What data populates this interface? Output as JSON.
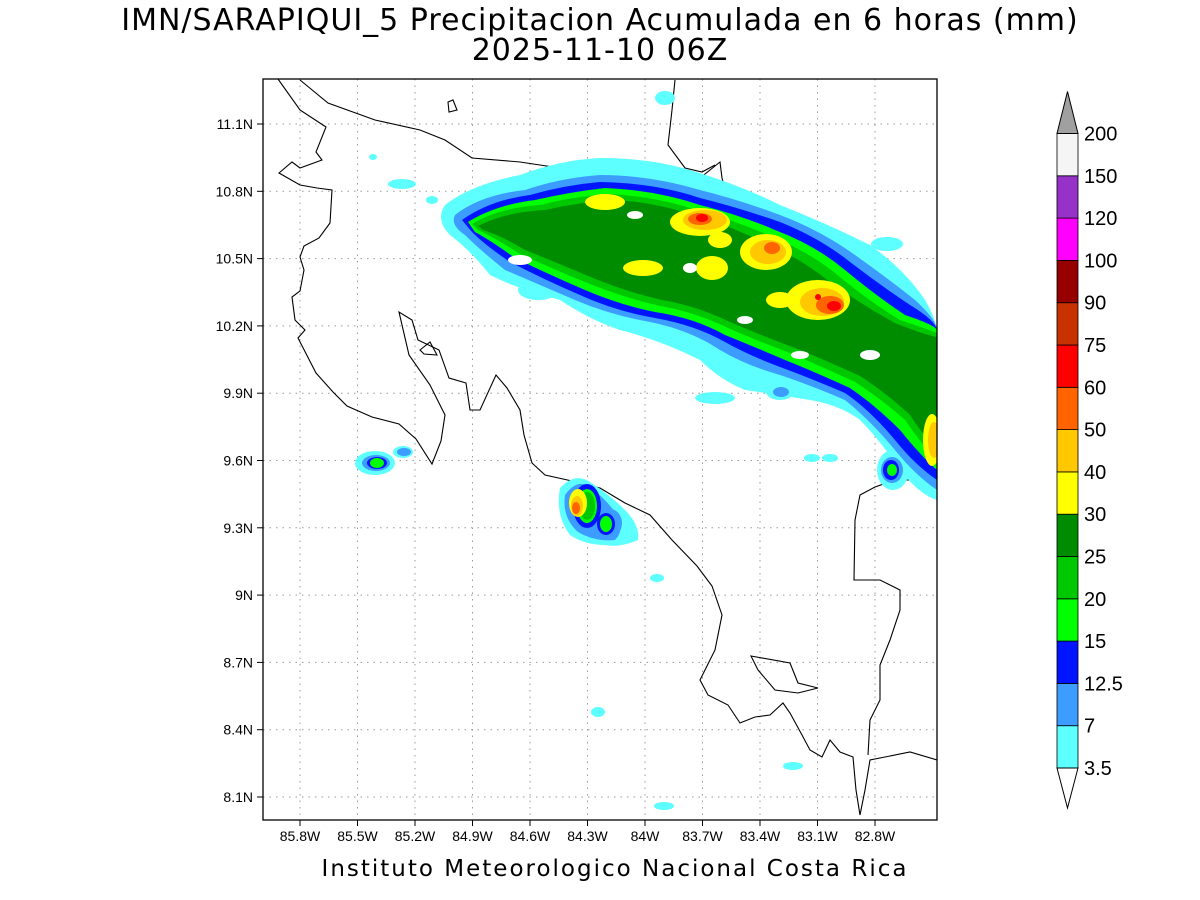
{
  "title_line1": "IMN/SARAPIQUI_5 Precipitacion Acumulada en 6 horas (mm)",
  "title_line2": "2025-11-10 06Z",
  "footer": "Instituto Meteorologico Nacional Costa Rica",
  "chart_data": {
    "type": "heatmap",
    "lon_ticks": [
      "85.8W",
      "85.5W",
      "85.2W",
      "84.9W",
      "84.6W",
      "84.3W",
      "84W",
      "83.7W",
      "83.4W",
      "83.1W",
      "82.8W"
    ],
    "lat_ticks": [
      "11.1N",
      "10.8N",
      "10.5N",
      "10.2N",
      "9.9N",
      "9.6N",
      "9.3N",
      "9N",
      "8.7N",
      "8.4N",
      "8.1N"
    ],
    "grid": true,
    "legend_placement": "right",
    "colorbar": {
      "labels": [
        "3.5",
        "7",
        "12.5",
        "15",
        "20",
        "25",
        "30",
        "40",
        "50",
        "60",
        "75",
        "90",
        "100",
        "120",
        "150",
        "200"
      ],
      "colors": [
        "#5effff",
        "#3c9cff",
        "#0014ff",
        "#00ff00",
        "#00c800",
        "#008c00",
        "#ffff00",
        "#ffc800",
        "#ff6400",
        "#ff0000",
        "#c83200",
        "#960000",
        "#ff00ff",
        "#9632c8",
        "#f5f5f5",
        "#a0a0a0"
      ]
    }
  }
}
